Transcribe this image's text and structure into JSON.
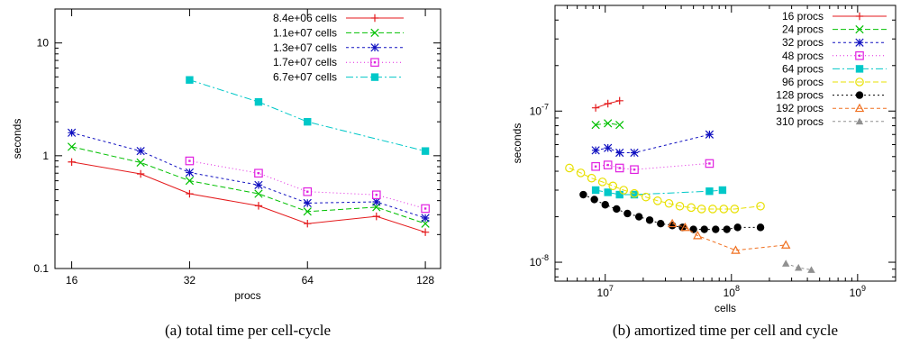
{
  "chart_data": [
    {
      "type": "line",
      "caption": "(a)  total time per cell-cycle",
      "xlabel": "procs",
      "ylabel": "seconds",
      "xscale": "log",
      "yscale": "log",
      "xlim": [
        14.5,
        140
      ],
      "ylim": [
        0.1,
        20
      ],
      "xticks": [
        {
          "v": 16,
          "label": "16"
        },
        {
          "v": 32,
          "label": "32"
        },
        {
          "v": 64,
          "label": "64"
        },
        {
          "v": 128,
          "label": "128"
        }
      ],
      "yticks": [
        {
          "v": 0.1,
          "label": "0.1"
        },
        {
          "v": 1,
          "label": "1"
        },
        {
          "v": 10,
          "label": "10"
        }
      ],
      "grid": false,
      "legend_position": "top-right",
      "series": [
        {
          "name": "8.4e+06 cells",
          "color": "#e41a1c",
          "marker": "plus",
          "dash": "",
          "x": [
            16,
            24,
            32,
            48,
            64,
            96,
            128
          ],
          "y": [
            0.88,
            0.69,
            0.46,
            0.36,
            0.25,
            0.29,
            0.21
          ]
        },
        {
          "name": "1.1e+07 cells",
          "color": "#00c000",
          "marker": "x",
          "dash": "6,3",
          "x": [
            16,
            24,
            32,
            48,
            64,
            96,
            128
          ],
          "y": [
            1.2,
            0.87,
            0.6,
            0.46,
            0.32,
            0.35,
            0.25
          ]
        },
        {
          "name": "1.3e+07 cells",
          "color": "#1010c0",
          "marker": "star",
          "dash": "3,3",
          "x": [
            16,
            24,
            32,
            48,
            64,
            96,
            128
          ],
          "y": [
            1.6,
            1.1,
            0.71,
            0.55,
            0.38,
            0.39,
            0.28
          ]
        },
        {
          "name": "1.7e+07 cells",
          "color": "#e020e0",
          "marker": "box",
          "dash": "1,3",
          "x": [
            32,
            48,
            64,
            96,
            128
          ],
          "y": [
            0.9,
            0.7,
            0.48,
            0.45,
            0.34
          ]
        },
        {
          "name": "6.7e+07 cells",
          "color": "#00c8c8",
          "marker": "fbox",
          "dash": "8,3,2,3",
          "x": [
            32,
            48,
            64,
            128
          ],
          "y": [
            4.7,
            3.0,
            2.0,
            1.1
          ]
        }
      ]
    },
    {
      "type": "scatter",
      "caption": "(b)  amortized time per cell and cycle",
      "xlabel": "cells",
      "ylabel": "seconds",
      "xscale": "log",
      "yscale": "log",
      "xlim": [
        4000000,
        2000000000
      ],
      "ylim": [
        7.5e-09,
        5e-07
      ],
      "xticks": [
        {
          "v": 10000000,
          "label": "10^7"
        },
        {
          "v": 100000000,
          "label": "10^8"
        },
        {
          "v": 1000000000,
          "label": "10^9"
        }
      ],
      "yticks": [
        {
          "v": 1e-08,
          "label": "10^-8"
        },
        {
          "v": 1e-07,
          "label": "10^-7"
        }
      ],
      "grid": false,
      "legend_position": "top-right",
      "series": [
        {
          "name": "16 procs",
          "color": "#e41a1c",
          "marker": "plus",
          "dash": "",
          "x": [
            8400000,
            10500000,
            13000000
          ],
          "y": [
            1.05e-07,
            1.12e-07,
            1.17e-07
          ]
        },
        {
          "name": "24 procs",
          "color": "#00c000",
          "marker": "x",
          "dash": "6,3",
          "x": [
            8400000,
            10500000,
            13000000
          ],
          "y": [
            8.1e-08,
            8.3e-08,
            8.1e-08
          ]
        },
        {
          "name": "32 procs",
          "color": "#1010c0",
          "marker": "star",
          "dash": "3,3",
          "x": [
            8400000,
            10500000,
            13000000,
            17000000,
            67000000
          ],
          "y": [
            5.5e-08,
            5.7e-08,
            5.3e-08,
            5.3e-08,
            7e-08
          ]
        },
        {
          "name": "48 procs",
          "color": "#e020e0",
          "marker": "box",
          "dash": "1,3",
          "x": [
            8400000,
            10500000,
            13000000,
            17000000,
            67000000
          ],
          "y": [
            4.3e-08,
            4.4e-08,
            4.2e-08,
            4.1e-08,
            4.5e-08
          ]
        },
        {
          "name": "64 procs",
          "color": "#00c8c8",
          "marker": "fbox",
          "dash": "8,3,2,3",
          "x": [
            8400000,
            10500000,
            13000000,
            17000000,
            67000000,
            85000000
          ],
          "y": [
            3e-08,
            2.9e-08,
            2.8e-08,
            2.8e-08,
            2.95e-08,
            3e-08
          ]
        },
        {
          "name": "96 procs",
          "color": "#e8e000",
          "marker": "circle",
          "dash": "6,3",
          "x": [
            5200000,
            6400000,
            7800000,
            9500000,
            11500000,
            14000000,
            17000000,
            21000000,
            26000000,
            32000000,
            39000000,
            48000000,
            58000000,
            71000000,
            87000000,
            106000000,
            170000000
          ],
          "y": [
            4.2e-08,
            3.9e-08,
            3.6e-08,
            3.4e-08,
            3.2e-08,
            3e-08,
            2.85e-08,
            2.7e-08,
            2.55e-08,
            2.45e-08,
            2.35e-08,
            2.3e-08,
            2.25e-08,
            2.25e-08,
            2.25e-08,
            2.25e-08,
            2.35e-08
          ]
        },
        {
          "name": "128 procs",
          "color": "#000000",
          "marker": "fcircle",
          "dash": "2,3",
          "x": [
            6700000,
            8200000,
            10000000,
            12300000,
            15000000,
            18500000,
            22500000,
            27500000,
            34000000,
            41000000,
            50000000,
            61000000,
            75000000,
            92000000,
            112000000,
            170000000
          ],
          "y": [
            2.8e-08,
            2.6e-08,
            2.4e-08,
            2.25e-08,
            2.1e-08,
            2e-08,
            1.9e-08,
            1.8e-08,
            1.75e-08,
            1.7e-08,
            1.65e-08,
            1.65e-08,
            1.65e-08,
            1.65e-08,
            1.7e-08,
            1.7e-08
          ]
        },
        {
          "name": "192 procs",
          "color": "#f07020",
          "marker": "triangle",
          "dash": "4,3",
          "x": [
            34000000,
            43000000,
            54000000,
            108000000,
            270000000
          ],
          "y": [
            1.8e-08,
            1.7e-08,
            1.5e-08,
            1.2e-08,
            1.3e-08
          ]
        },
        {
          "name": "310 procs",
          "color": "#909090",
          "marker": "ftriangle",
          "dash": "3,3",
          "x": [
            270000000,
            340000000,
            430000000
          ],
          "y": [
            9.8e-09,
            9.2e-09,
            8.9e-09
          ]
        }
      ]
    }
  ]
}
